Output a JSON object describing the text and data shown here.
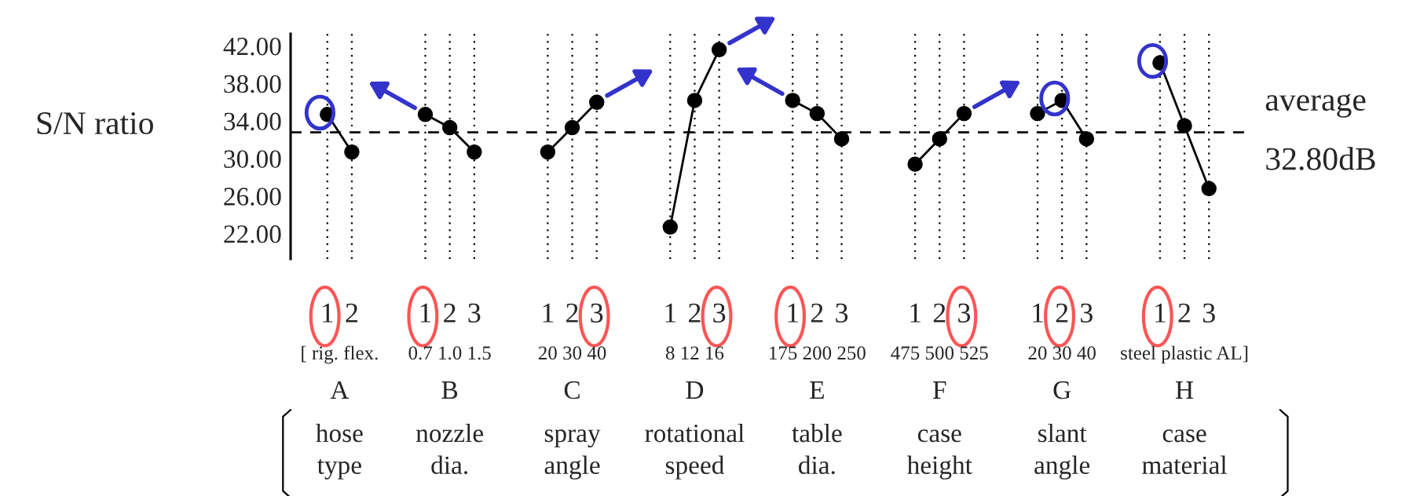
{
  "chart_data": {
    "type": "line",
    "ylabel": "S/N ratio",
    "categories": [
      "1",
      "2",
      null,
      null,
      "1",
      "2",
      "3",
      null,
      null,
      "1",
      "2",
      "3",
      null,
      null,
      "1",
      "2",
      "3",
      null,
      null,
      "1",
      "2",
      "3",
      null,
      null,
      "1",
      "2",
      "3",
      null,
      null,
      "1",
      "2",
      "3",
      null,
      null,
      "1",
      "2",
      "3"
    ],
    "series": [
      {
        "color": "#000000",
        "values": [
          34.7,
          30.7,
          null,
          null,
          34.7,
          33.3,
          30.7,
          null,
          null,
          30.7,
          33.3,
          36.0,
          null,
          null,
          22.7,
          36.2,
          41.6,
          null,
          null,
          36.2,
          34.8,
          32.1,
          null,
          null,
          29.4,
          32.1,
          34.8,
          null,
          null,
          34.8,
          36.2,
          32.1,
          null,
          null,
          40.2,
          33.5,
          26.8
        ]
      }
    ],
    "ylim": [
      19.3,
      43.3
    ],
    "yticks": [
      {
        "value": 22,
        "label": "22.00"
      },
      {
        "value": 26,
        "label": "26.00"
      },
      {
        "value": 30,
        "label": "30.00"
      },
      {
        "value": 34,
        "label": "34.00"
      },
      {
        "value": 38,
        "label": "38.00"
      },
      {
        "value": 42,
        "label": "42.00"
      }
    ],
    "ref_lines": [
      {
        "axis": "y",
        "value": 32.8,
        "label": "average\n32.80dB",
        "color": "#000000",
        "line_style": "dashed"
      }
    ],
    "annotations": [
      "[ rig. flex.",
      "0.7 1.0 1.5",
      "20 30 40",
      "8 12 16",
      "175 200 250",
      "475 500 525",
      "20 30 40",
      "steel plastic AL]",
      "A",
      "B",
      "C",
      "D",
      "E",
      "F",
      "G",
      "H",
      "hose\ntype",
      "nozzle\ndia.",
      "spray\nangle",
      "rotational\nspeed",
      "table\ndia.",
      "case\nheight",
      "slant\nangle",
      "case\nmaterial"
    ],
    "grid": "x",
    "marker": "circle",
    "line_style": "solid"
  }
}
